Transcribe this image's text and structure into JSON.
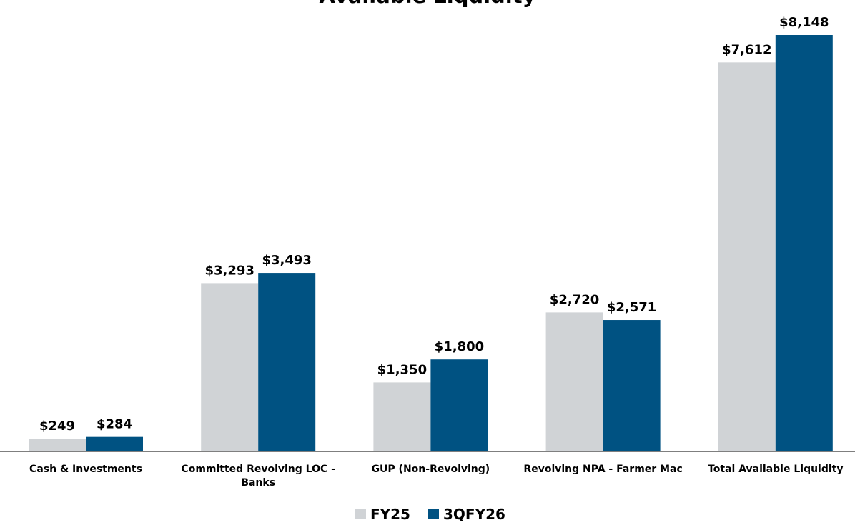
{
  "chart_data": {
    "type": "bar",
    "title": "Available Liquidity",
    "categories": [
      "Cash & Investments",
      "Committed Revolving LOC - Banks",
      "GUP (Non-Revolving)",
      "Revolving NPA - Farmer Mac",
      "Total Available Liquidity"
    ],
    "series": [
      {
        "name": "FY25",
        "color": "#d0d3d6",
        "values": [
          249,
          3293,
          1350,
          2720,
          7612
        ],
        "value_labels": [
          "$249",
          "$3,293",
          "$1,350",
          "$2,720",
          "$7,612"
        ]
      },
      {
        "name": "3QFY26",
        "color": "#005282",
        "values": [
          284,
          3493,
          1800,
          2571,
          8148
        ],
        "value_labels": [
          "$284",
          "$3,493",
          "$1,800",
          "$2,571",
          "$8,148"
        ]
      }
    ],
    "legend": "bottom"
  }
}
